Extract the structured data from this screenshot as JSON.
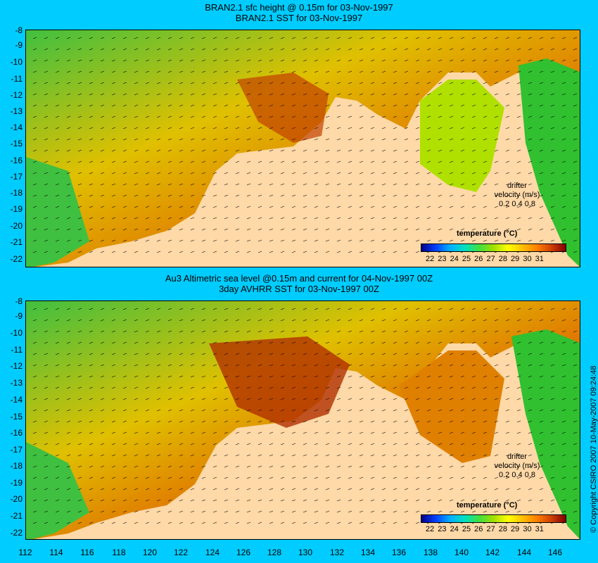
{
  "top_panel": {
    "title_line1": "BRAN2.1 sfc height @ 0.15m for 03-Nov-1997",
    "title_line2": "BRAN2.1 SST for 03-Nov-1997"
  },
  "bottom_panel": {
    "title_line1": "Au3 Altimetric sea level  @0.15m and current for 04-Nov-1997 00Z",
    "title_line2": "3day AVHRR SST for 03-Nov-1997 00Z"
  },
  "y_axis_labels": [
    "-8",
    "-9",
    "-10",
    "-11",
    "-12",
    "-13",
    "-14",
    "-15",
    "-16",
    "-17",
    "-18",
    "-19",
    "-20",
    "-21",
    "-22"
  ],
  "x_axis_labels": [
    "112",
    "114",
    "116",
    "118",
    "120",
    "122",
    "124",
    "126",
    "128",
    "130",
    "132",
    "134",
    "136",
    "138",
    "140",
    "142",
    "144",
    "146"
  ],
  "colorbar": {
    "title": "temperature (°C)",
    "ticks": "22 23 24 25 26 27 28 29 30 31",
    "colors": [
      "#00008b",
      "#0040ff",
      "#00b0ff",
      "#00e0c0",
      "#40e040",
      "#a0e000",
      "#ffff00",
      "#ffc000",
      "#ff8000",
      "#d04000",
      "#800000"
    ]
  },
  "drifter_legend": {
    "line1": "drifter",
    "line2": "velocity (m/s)",
    "line3": "0.2 0.4 0.8"
  },
  "copyright": "© Copyright CSIRO 2007    10-May-2007 09:24:48",
  "colors": {
    "background": "#00ccff",
    "land": "#ffd9a8"
  }
}
